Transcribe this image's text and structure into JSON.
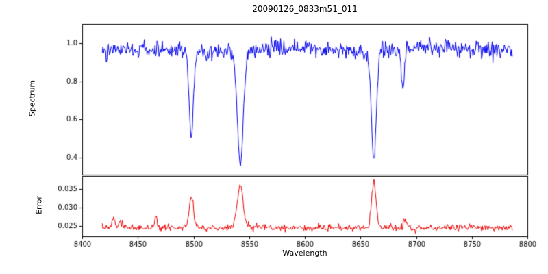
{
  "figure": {
    "title": "20090126_0833m51_011",
    "background": "#ffffff",
    "axis_color": "#000000"
  },
  "chart_data": [
    {
      "type": "line",
      "panel": "spectrum",
      "title": "20090126_0833m51_011",
      "ylabel": "Spectrum",
      "line_color": "#0000ee",
      "xlim": [
        8400,
        8800
      ],
      "x_data_range": [
        8418,
        8787
      ],
      "ylim": [
        0.31,
        1.1
      ],
      "yticks": [
        0.4,
        0.6,
        0.8,
        1.0
      ],
      "ytick_labels": [
        "0.4",
        "0.6",
        "0.8",
        "1.0"
      ],
      "grid": false,
      "legend": "none",
      "continuum_level": 0.965,
      "noise_sigma": 0.022,
      "seed": 42,
      "absorption_lines": [
        {
          "center": 8498,
          "depth": 0.47,
          "sigma": 1.9,
          "min_value": 0.51
        },
        {
          "center": 8542,
          "depth": 0.62,
          "sigma": 2.7,
          "min_value": 0.37
        },
        {
          "center": 8662,
          "depth": 0.59,
          "sigma": 2.2,
          "min_value": 0.4
        },
        {
          "center": 8688,
          "depth": 0.21,
          "sigma": 1.2,
          "min_value": 0.77
        }
      ]
    },
    {
      "type": "line",
      "panel": "error",
      "ylabel": "Error",
      "xlabel": "Wavelength",
      "line_color": "#ee0000",
      "xlim": [
        8400,
        8800
      ],
      "x_data_range": [
        8418,
        8787
      ],
      "ylim": [
        0.0222,
        0.0385
      ],
      "yticks": [
        0.025,
        0.03,
        0.035
      ],
      "ytick_labels": [
        "0.025",
        "0.030",
        "0.035"
      ],
      "xticks": [
        8400,
        8450,
        8500,
        8550,
        8600,
        8650,
        8700,
        8750,
        8800
      ],
      "xtick_labels": [
        "8400",
        "8450",
        "8500",
        "8550",
        "8600",
        "8650",
        "8700",
        "8750",
        "8800"
      ],
      "grid": false,
      "legend": "none",
      "baseline_level": 0.0245,
      "noise_sigma": 0.00042,
      "seed": 7,
      "peaks": [
        {
          "center": 8428,
          "height": 0.0024,
          "sigma": 1.4
        },
        {
          "center": 8434,
          "height": 0.0018,
          "sigma": 1.0
        },
        {
          "center": 8466,
          "height": 0.0028,
          "sigma": 1.2
        },
        {
          "center": 8498,
          "height": 0.0085,
          "sigma": 1.9,
          "max_value": 0.033
        },
        {
          "center": 8542,
          "height": 0.0115,
          "sigma": 2.7,
          "max_value": 0.036
        },
        {
          "center": 8662,
          "height": 0.0125,
          "sigma": 2.0,
          "max_value": 0.037
        },
        {
          "center": 8690,
          "height": 0.0022,
          "sigma": 1.2
        }
      ]
    }
  ]
}
